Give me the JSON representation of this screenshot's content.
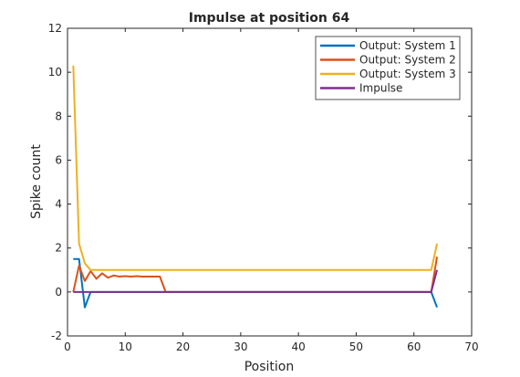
{
  "chart_data": {
    "type": "line",
    "title": "Impulse at position 64",
    "xlabel": "Position",
    "ylabel": "Spike count",
    "xlim": [
      0,
      70
    ],
    "ylim": [
      -2,
      12
    ],
    "xticks": [
      "0",
      "10",
      "20",
      "30",
      "40",
      "50",
      "60",
      "70"
    ],
    "yticks": [
      "-2",
      "0",
      "2",
      "4",
      "6",
      "8",
      "10",
      "12"
    ],
    "grid": false,
    "legend_position": "top-right",
    "series": [
      {
        "name": "Output: System 1",
        "color": "#0072BD",
        "points": [
          [
            1,
            1.5
          ],
          [
            2,
            1.5
          ],
          [
            3,
            -0.7
          ],
          [
            4,
            0
          ],
          [
            5,
            0
          ],
          [
            10,
            0
          ],
          [
            20,
            0
          ],
          [
            30,
            0
          ],
          [
            40,
            0
          ],
          [
            50,
            0
          ],
          [
            60,
            0
          ],
          [
            63,
            0
          ],
          [
            64,
            -0.7
          ]
        ]
      },
      {
        "name": "Output: System 2",
        "color": "#D95319",
        "points": [
          [
            1,
            0
          ],
          [
            2,
            1.2
          ],
          [
            3,
            0.5
          ],
          [
            4,
            0.95
          ],
          [
            5,
            0.6
          ],
          [
            6,
            0.85
          ],
          [
            7,
            0.65
          ],
          [
            8,
            0.75
          ],
          [
            9,
            0.7
          ],
          [
            10,
            0.72
          ],
          [
            11,
            0.7
          ],
          [
            12,
            0.72
          ],
          [
            13,
            0.7
          ],
          [
            14,
            0.7
          ],
          [
            15,
            0.7
          ],
          [
            16,
            0.7
          ],
          [
            17,
            0
          ],
          [
            20,
            0
          ],
          [
            30,
            0
          ],
          [
            40,
            0
          ],
          [
            50,
            0
          ],
          [
            60,
            0
          ],
          [
            63,
            0
          ],
          [
            64,
            1.6
          ]
        ]
      },
      {
        "name": "Output: System 3",
        "color": "#EDB120",
        "points": [
          [
            1,
            10.3
          ],
          [
            2,
            2.2
          ],
          [
            3,
            1.3
          ],
          [
            4,
            1
          ],
          [
            5,
            1
          ],
          [
            10,
            1
          ],
          [
            20,
            1
          ],
          [
            30,
            1
          ],
          [
            40,
            1
          ],
          [
            50,
            1
          ],
          [
            60,
            1
          ],
          [
            63,
            1
          ],
          [
            64,
            2.2
          ]
        ]
      },
      {
        "name": "Impulse",
        "color": "#7E2F8E",
        "points": [
          [
            1,
            0
          ],
          [
            10,
            0
          ],
          [
            20,
            0
          ],
          [
            30,
            0
          ],
          [
            40,
            0
          ],
          [
            50,
            0
          ],
          [
            60,
            0
          ],
          [
            63,
            0
          ],
          [
            64,
            1
          ]
        ]
      }
    ]
  }
}
